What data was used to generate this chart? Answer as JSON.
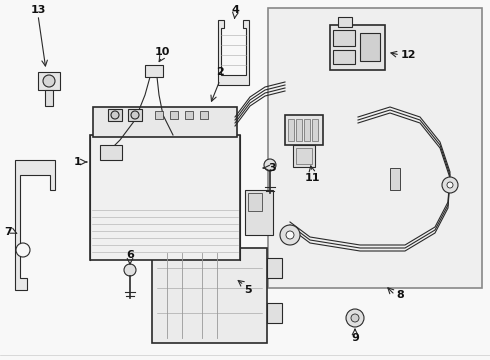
{
  "bg_color": "#f8f8f8",
  "line_color": "#2a2a2a",
  "inset_bg": "#efefef",
  "fig_width": 4.9,
  "fig_height": 3.6,
  "dpi": 100,
  "label_fs": 8,
  "label_color": "#111111",
  "arrow_color": "#111111"
}
